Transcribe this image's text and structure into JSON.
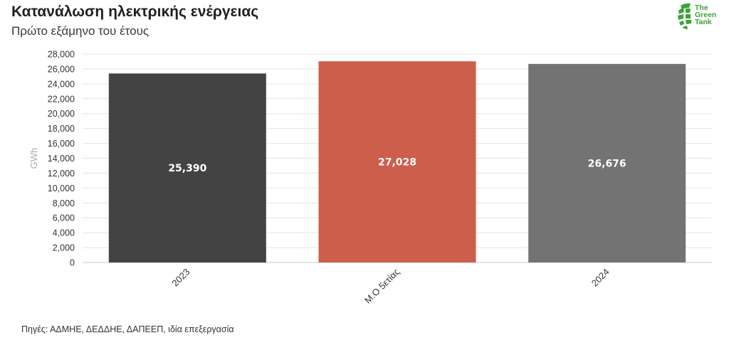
{
  "header": {
    "title": "Κατανάλωση ηλεκτρικής ενέργειας",
    "subtitle": "Πρώτο εξάμηνο του έτους"
  },
  "logo": {
    "text": "The\nGreen\nTank",
    "color": "#3aa335",
    "icon": "globe-leaf-icon"
  },
  "footer": {
    "source": "Πηγές: ΑΔΜΗΕ, ΔΕΔΔΗΕ, ΔΑΠΕΕΠ, ιδία επεξεργασία"
  },
  "chart_data": {
    "type": "bar",
    "title": "Κατανάλωση ηλεκτρικής ενέργειας",
    "subtitle": "Πρώτο εξάμηνο του έτους",
    "xlabel": "",
    "ylabel": "GWh",
    "ylim": [
      0,
      28000
    ],
    "yticks": [
      0,
      2000,
      4000,
      6000,
      8000,
      10000,
      12000,
      14000,
      16000,
      18000,
      20000,
      22000,
      24000,
      26000,
      28000
    ],
    "ytick_labels": [
      "0",
      "2,000",
      "4,000",
      "6,000",
      "8,000",
      "10,000",
      "12,000",
      "14,000",
      "16,000",
      "18,000",
      "20,000",
      "22,000",
      "24,000",
      "26,000",
      "28,000"
    ],
    "categories": [
      "2023",
      "Μ.Ο 5ετίας",
      "2024"
    ],
    "values": [
      25390,
      27028,
      26676
    ],
    "value_labels": [
      "25,390",
      "27,028",
      "26,676"
    ],
    "colors": [
      "#434343",
      "#cd5e4c",
      "#737373"
    ],
    "grid": true,
    "legend": "none"
  }
}
